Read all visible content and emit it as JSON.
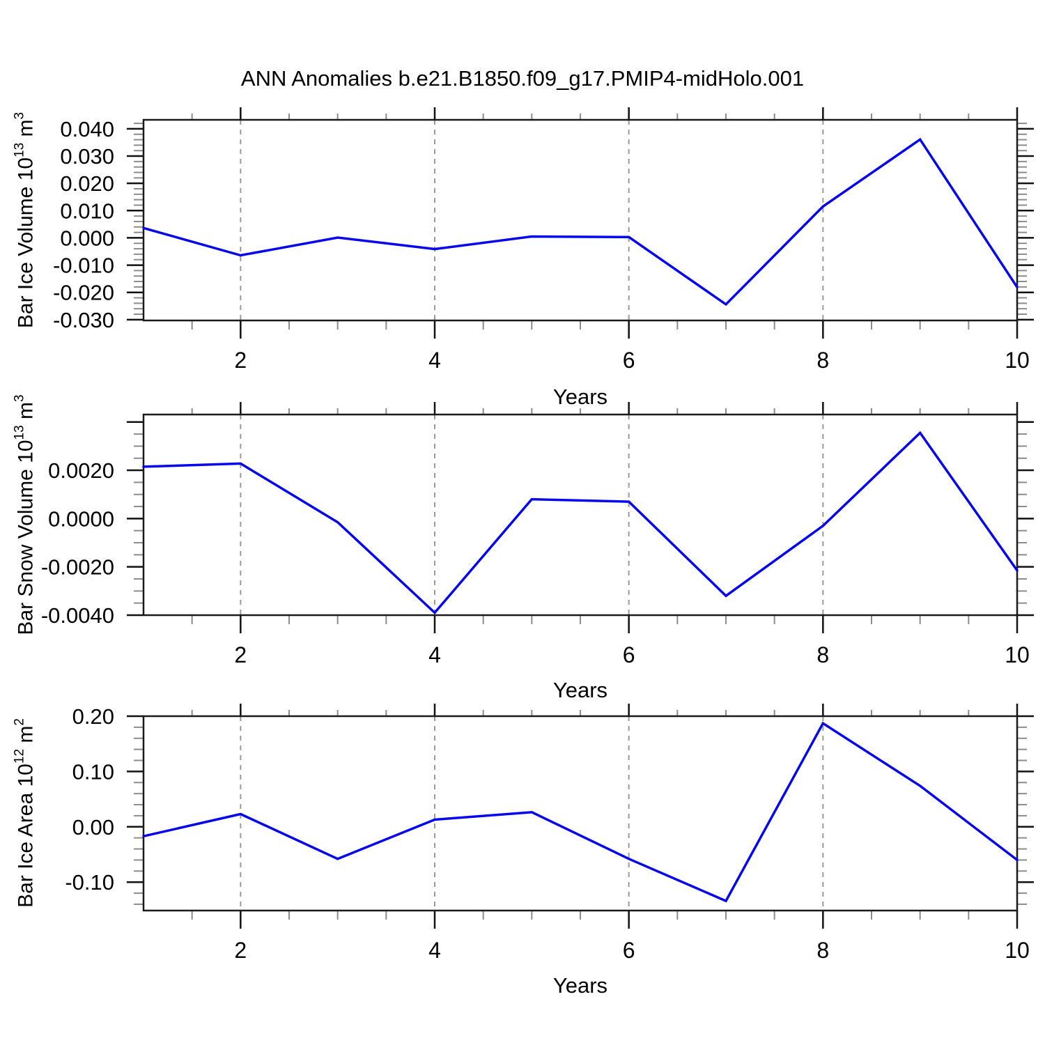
{
  "title": "ANN Anomalies b.e21.B1850.f09_g17.PMIP4-midHolo.001",
  "line_color": "#0606ee",
  "style": {
    "frame_color": "#1a1a1a",
    "major_tick_color": "#111111",
    "minor_tick_color": "#8c8c8c",
    "grid_color": "#9a9a9a",
    "text_color": "#000000"
  },
  "chart_data": [
    {
      "type": "line",
      "ylabel": "Bar Ice Volume 10^13 m^3",
      "ylabel_parts": [
        {
          "text": "Bar Ice Volume 10",
          "sup": false
        },
        {
          "text": "13",
          "sup": true
        },
        {
          "text": " m",
          "sup": false
        },
        {
          "text": "3",
          "sup": true
        }
      ],
      "xlabel": "Years",
      "x": [
        1,
        2,
        3,
        4,
        5,
        6,
        7,
        8,
        9,
        10
      ],
      "values": [
        0.0036,
        -0.0064,
        0.0001,
        -0.0041,
        0.0005,
        0.0003,
        -0.0244,
        0.0115,
        0.0361,
        -0.0181
      ],
      "xlim": [
        1,
        10
      ],
      "ylim": [
        -0.0303,
        0.0433
      ],
      "ytick_labels": [
        {
          "value": 0.04,
          "label": "0.040"
        },
        {
          "value": 0.03,
          "label": "0.030"
        },
        {
          "value": 0.02,
          "label": "0.020"
        },
        {
          "value": 0.01,
          "label": "0.010"
        },
        {
          "value": 0.0,
          "label": "0.000"
        },
        {
          "value": -0.01,
          "label": "-0.010"
        },
        {
          "value": -0.02,
          "label": "-0.020"
        },
        {
          "value": -0.03,
          "label": "-0.030"
        }
      ],
      "ytick_major_extra": [],
      "ytick_minor_step": 0.002,
      "xtick_major": [
        2,
        4,
        6,
        8,
        10
      ],
      "xtick_labels": [
        "2",
        "4",
        "6",
        "8",
        "10"
      ],
      "xtick_minor_step": 0.5,
      "grid_x": [
        2,
        4,
        6,
        8
      ],
      "grid": "vertical-dashed",
      "legend": "none"
    },
    {
      "type": "line",
      "ylabel": "Bar Snow Volume 10^13 m^3",
      "ylabel_parts": [
        {
          "text": "Bar Snow Volume 10",
          "sup": false
        },
        {
          "text": "13",
          "sup": true
        },
        {
          "text": " m",
          "sup": false
        },
        {
          "text": "3",
          "sup": true
        }
      ],
      "xlabel": "Years",
      "x": [
        1,
        2,
        3,
        4,
        5,
        6,
        7,
        8,
        9,
        10
      ],
      "values": [
        0.00215,
        0.00228,
        -0.00015,
        -0.0039,
        0.0008,
        0.0007,
        -0.0032,
        -0.0003,
        0.00355,
        -0.00215
      ],
      "xlim": [
        1,
        10
      ],
      "ylim": [
        -0.004,
        0.00431
      ],
      "ytick_labels": [
        {
          "value": 0.002,
          "label": "0.0020"
        },
        {
          "value": 0.0,
          "label": "0.0000"
        },
        {
          "value": -0.002,
          "label": "-0.0020"
        },
        {
          "value": -0.004,
          "label": "-0.0040"
        }
      ],
      "ytick_major_extra": [
        0.004
      ],
      "ytick_minor_step": 0.0005,
      "xtick_major": [
        2,
        4,
        6,
        8,
        10
      ],
      "xtick_labels": [
        "2",
        "4",
        "6",
        "8",
        "10"
      ],
      "xtick_minor_step": 0.5,
      "grid_x": [
        2,
        4,
        6,
        8
      ],
      "grid": "vertical-dashed",
      "legend": "none"
    },
    {
      "type": "line",
      "ylabel": "Bar Ice Area 10^12 m^2",
      "ylabel_parts": [
        {
          "text": "Bar Ice Area 10",
          "sup": false
        },
        {
          "text": "12",
          "sup": true
        },
        {
          "text": " m",
          "sup": false
        },
        {
          "text": "2",
          "sup": true
        }
      ],
      "xlabel": "Years",
      "x": [
        1,
        2,
        3,
        4,
        5,
        6,
        7,
        8,
        9,
        10
      ],
      "values": [
        -0.017,
        0.023,
        -0.058,
        0.013,
        0.0265,
        -0.058,
        -0.134,
        0.187,
        0.074,
        -0.06
      ],
      "xlim": [
        1,
        10
      ],
      "ylim": [
        -0.1514,
        0.2
      ],
      "ytick_labels": [
        {
          "value": 0.2,
          "label": "0.20"
        },
        {
          "value": 0.1,
          "label": "0.10"
        },
        {
          "value": 0.0,
          "label": "0.00"
        },
        {
          "value": -0.1,
          "label": "-0.10"
        }
      ],
      "ytick_major_extra": [],
      "ytick_minor_step": 0.02,
      "xtick_major": [
        2,
        4,
        6,
        8,
        10
      ],
      "xtick_labels": [
        "2",
        "4",
        "6",
        "8",
        "10"
      ],
      "xtick_minor_step": 0.5,
      "grid_x": [
        2,
        4,
        6,
        8
      ],
      "grid": "vertical-dashed",
      "legend": "none"
    }
  ]
}
